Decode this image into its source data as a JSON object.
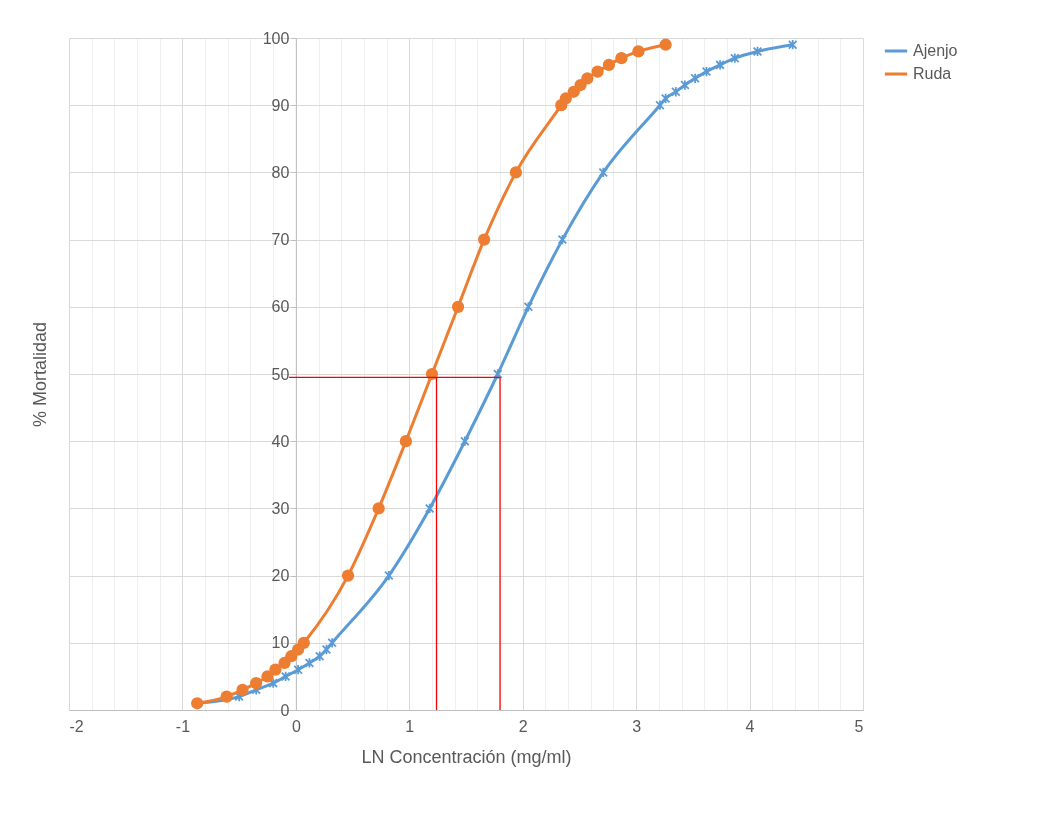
{
  "chart_data": {
    "type": "line",
    "xlabel": "LN Concentración (mg/ml)",
    "ylabel": "% Mortalidad",
    "xlim": [
      -2,
      5
    ],
    "ylim": [
      0,
      100
    ],
    "xticks": [
      -2,
      {
        "value": -1.8,
        "label": null
      },
      {
        "value": -1.6,
        "label": null
      },
      {
        "value": -1.4,
        "label": null
      },
      {
        "value": -1.2,
        "label": null
      },
      -1,
      {
        "value": -0.8,
        "label": null
      },
      {
        "value": -0.6,
        "label": null
      },
      {
        "value": -0.4,
        "label": null
      },
      {
        "value": -0.2,
        "label": null
      },
      0,
      {
        "value": 0.2,
        "label": null
      },
      {
        "value": 0.4,
        "label": null
      },
      {
        "value": 0.6,
        "label": null
      },
      {
        "value": 0.8,
        "label": null
      },
      1,
      {
        "value": 1.2,
        "label": null
      },
      {
        "value": 1.4,
        "label": null
      },
      {
        "value": 1.6,
        "label": null
      },
      {
        "value": 1.8,
        "label": null
      },
      2,
      {
        "value": 2.2,
        "label": null
      },
      {
        "value": 2.4,
        "label": null
      },
      {
        "value": 2.6,
        "label": null
      },
      {
        "value": 2.8,
        "label": null
      },
      3,
      {
        "value": 3.2,
        "label": null
      },
      {
        "value": 3.4,
        "label": null
      },
      {
        "value": 3.6,
        "label": null
      },
      {
        "value": 3.8,
        "label": null
      },
      4,
      {
        "value": 4.2,
        "label": null
      },
      {
        "value": 4.4,
        "label": null
      },
      {
        "value": 4.6,
        "label": null
      },
      {
        "value": 4.8,
        "label": null
      },
      5
    ],
    "yticks": [
      0,
      10,
      20,
      30,
      40,
      50,
      60,
      70,
      80,
      90,
      100
    ],
    "grid": true,
    "legend": "right",
    "series": [
      {
        "name": "Ajenjo",
        "color": "#5b9bd5",
        "marker": "cross",
        "x": [
          -0.87,
          -0.5,
          -0.35,
          -0.2,
          -0.09,
          0.02,
          0.12,
          0.21,
          0.27,
          0.32,
          0.82,
          1.18,
          1.49,
          1.78,
          2.05,
          2.35,
          2.71,
          3.21,
          3.26,
          3.35,
          3.43,
          3.52,
          3.62,
          3.74,
          3.87,
          4.07,
          4.38
        ],
        "values": [
          1,
          2,
          3,
          4,
          5,
          6,
          7,
          8,
          9,
          10,
          20,
          30,
          40,
          50,
          60,
          70,
          80,
          90,
          91,
          92,
          93,
          94,
          95,
          96,
          97,
          98,
          99
        ]
      },
      {
        "name": "Ruda",
        "color": "#ed7d31",
        "marker": "circle",
        "x": [
          -0.87,
          -0.61,
          -0.47,
          -0.35,
          -0.25,
          -0.18,
          -0.1,
          -0.04,
          0.02,
          0.07,
          0.46,
          0.73,
          0.97,
          1.2,
          1.43,
          1.66,
          1.94,
          2.34,
          2.38,
          2.45,
          2.51,
          2.57,
          2.66,
          2.76,
          2.87,
          3.02,
          3.26
        ],
        "values": [
          1,
          2,
          3,
          4,
          5,
          6,
          7,
          8,
          9,
          10,
          20,
          30,
          40,
          50,
          60,
          70,
          80,
          90,
          91,
          92,
          93,
          94,
          95,
          96,
          97,
          98,
          99
        ]
      },
      {
        "color": "#ff0000",
        "marker": "none",
        "x": [
          -0.06,
          1.8,
          1.8
        ],
        "values": [
          49.5,
          49.5,
          0
        ]
      },
      {
        "color": "#ff0000",
        "marker": "none",
        "x": [
          1.24,
          1.24
        ],
        "values": [
          49.5,
          0
        ]
      }
    ]
  }
}
